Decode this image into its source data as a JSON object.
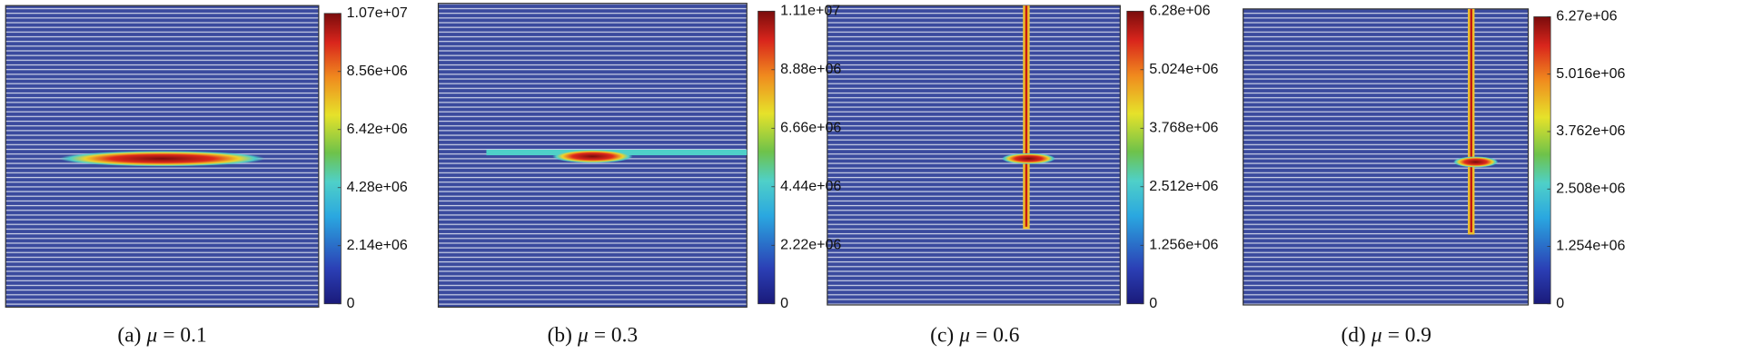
{
  "panels": [
    {
      "caption_prefix": "(a)",
      "caption_var": "μ",
      "caption_value": "= 0.1",
      "colorbar_ticks": [
        "1.07e+07",
        "8.56e+06",
        "6.42e+06",
        "4.28e+06",
        "2.14e+06",
        "0"
      ]
    },
    {
      "caption_prefix": "(b)",
      "caption_var": "μ",
      "caption_value": "= 0.3",
      "colorbar_ticks": [
        "1.11e+07",
        "8.88e+06",
        "6.66e+06",
        "4.44e+06",
        "2.22e+06",
        "0"
      ]
    },
    {
      "caption_prefix": "(c)",
      "caption_var": "μ",
      "caption_value": "= 0.6",
      "colorbar_ticks": [
        "6.28e+06",
        "5.024e+06",
        "3.768e+06",
        "2.512e+06",
        "1.256e+06",
        "0"
      ]
    },
    {
      "caption_prefix": "(d)",
      "caption_var": "μ",
      "caption_value": "= 0.9",
      "colorbar_ticks": [
        "6.27e+06",
        "5.016e+06",
        "3.762e+06",
        "2.508e+06",
        "1.254e+06",
        "0"
      ]
    }
  ]
}
